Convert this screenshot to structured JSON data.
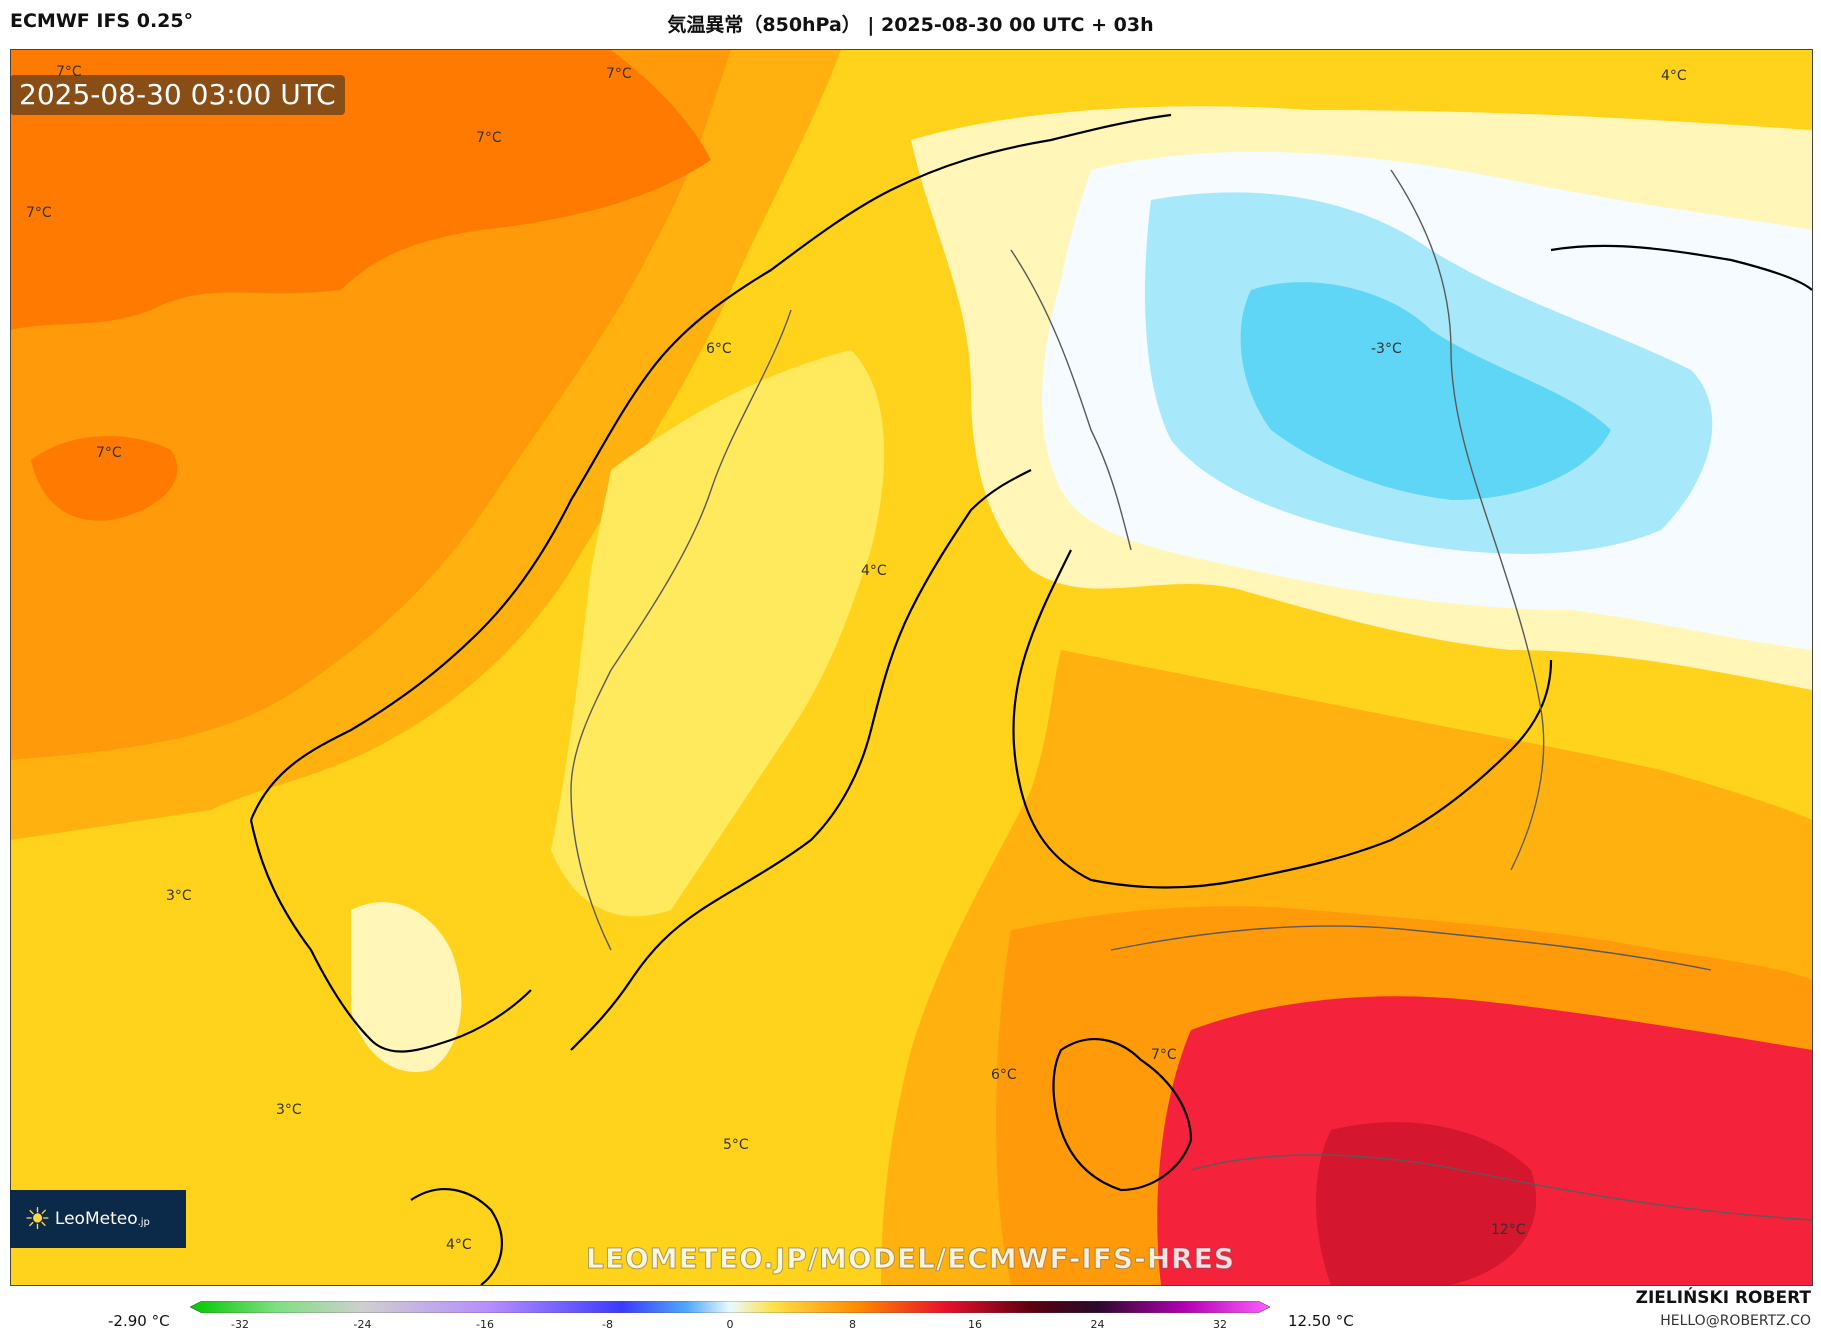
{
  "header": {
    "model": "ECMWF IFS 0.25°",
    "title": "気温異常（850hPa） | 2025-08-30 00 UTC + 03h"
  },
  "map": {
    "valid_time": "2025-08-30 03:00 UTC",
    "contour_labels": [
      "7°C",
      "7°C",
      "7°C",
      "7°C",
      "7°C",
      "6°C",
      "4°C",
      "-3°C",
      "4°C",
      "3°C",
      "3°C",
      "6°C",
      "7°C",
      "5°C",
      "4°C",
      "12°C"
    ],
    "colors": {
      "orange_deep": "#ff7a00",
      "orange": "#ff9b0a",
      "orange_light": "#ffb20f",
      "yellow": "#ffd21c",
      "yellow_light": "#ffe95c",
      "cream": "#fff6b8",
      "white": "#f5fbff",
      "cyan_light": "#a8e8fb",
      "cyan": "#5fd6f5",
      "red": "#f5223c",
      "red_dark": "#d4162e",
      "coast": "#000000",
      "border": "#5a5a5a"
    }
  },
  "logo": {
    "brand": "LeoMeteo",
    "suffix": ".jp"
  },
  "watermark": "LEOMETEO.JP/MODEL/ECMWF-IFS-HRES",
  "legend": {
    "min_label": "-2.90 °C",
    "max_label": "12.50 °C",
    "ticks": [
      "-32",
      "-24",
      "-16",
      "-8",
      "0",
      "8",
      "16",
      "24",
      "32"
    ]
  },
  "credit": {
    "author": "ZIELIŃSKI ROBERT",
    "email": "HELLO@ROBERTZ.CO"
  }
}
